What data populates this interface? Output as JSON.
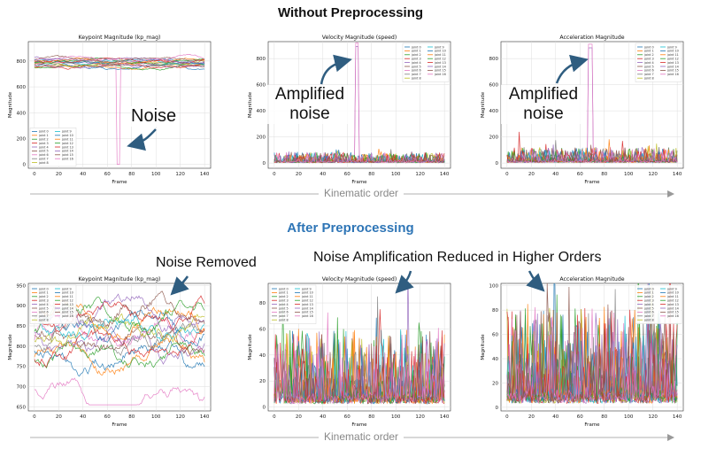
{
  "titles": {
    "without": "Without Preprocessing",
    "after": "After Preprocessing"
  },
  "annotations": {
    "noise": "Noise",
    "amplified_1": "Amplified",
    "noise_2": "noise",
    "amplified_2": "Amplified",
    "noise_3": "noise",
    "noise_removed": "Noise Removed",
    "noise_reduced": "Noise Amplification Reduced in Higher Orders"
  },
  "kinematic_order": "Kinematic order",
  "chart_data": [
    {
      "id": "raw_kp",
      "type": "line",
      "title": "Keypoint Magnitude (kp_mag)",
      "xlabel": "Frame",
      "ylabel": "Magnitude",
      "xlim": [
        -5,
        145
      ],
      "ylim": [
        -30,
        950
      ],
      "xticks": [
        0,
        20,
        40,
        60,
        80,
        100,
        120,
        140
      ],
      "yticks": [
        0,
        200,
        400,
        600,
        800
      ],
      "grid": true,
      "legend_position": "lower-left",
      "legend_cols": 2,
      "legend": [
        "joint 0",
        "joint 1",
        "joint 2",
        "joint 3",
        "joint 4",
        "joint 5",
        "joint 6",
        "joint 7",
        "joint 8",
        "joint 9",
        "joint 10",
        "joint 11",
        "joint 12",
        "joint 13",
        "joint 14",
        "joint 15",
        "joint 16"
      ],
      "gen": {
        "kind": "level",
        "base": 780,
        "spread": 55,
        "amp": 28,
        "minv": 650,
        "maxv": 920,
        "spike": {
          "x": [
            68,
            70
          ],
          "v": 0
        }
      }
    },
    {
      "id": "raw_speed",
      "type": "line",
      "title": "Velocity Magnitude (speed)",
      "xlabel": "Frame",
      "ylabel": "Magnitude",
      "xlim": [
        -5,
        145
      ],
      "ylim": [
        -40,
        930
      ],
      "xticks": [
        0,
        20,
        40,
        60,
        80,
        100,
        120,
        140
      ],
      "yticks": [
        0,
        200,
        400,
        600,
        800
      ],
      "grid": true,
      "legend_position": "upper-right",
      "legend_cols": 2,
      "legend": [
        "joint 0",
        "joint 1",
        "joint 2",
        "joint 3",
        "joint 4",
        "joint 5",
        "joint 6",
        "joint 7",
        "joint 8",
        "joint 9",
        "joint 10",
        "joint 11",
        "joint 12",
        "joint 13",
        "joint 14",
        "joint 15",
        "joint 16"
      ],
      "gen": {
        "kind": "spiky",
        "base": 8,
        "amp": 30,
        "peak": 90,
        "spike": {
          "x": [
            67,
            69
          ],
          "v": 920
        }
      }
    },
    {
      "id": "raw_acc",
      "type": "line",
      "title": "Acceleration Magnitude",
      "xlabel": "Frame",
      "ylabel": "Magnitude",
      "xlim": [
        -5,
        145
      ],
      "ylim": [
        -40,
        930
      ],
      "xticks": [
        0,
        20,
        40,
        60,
        80,
        100,
        120,
        140
      ],
      "yticks": [
        0,
        200,
        400,
        600,
        800
      ],
      "grid": true,
      "legend_position": "upper-right",
      "legend_cols": 2,
      "legend": [
        "joint 0",
        "joint 1",
        "joint 2",
        "joint 3",
        "joint 4",
        "joint 5",
        "joint 6",
        "joint 7",
        "joint 8",
        "joint 9",
        "joint 10",
        "joint 11",
        "joint 12",
        "joint 13",
        "joint 14",
        "joint 15",
        "joint 16"
      ],
      "gen": {
        "kind": "spiky",
        "base": 10,
        "amp": 45,
        "peak": 140,
        "spike": {
          "x": [
            67,
            70
          ],
          "v": 910
        }
      }
    },
    {
      "id": "pre_kp",
      "type": "line",
      "title": "Keypoint Magnitude (kp_mag)",
      "xlabel": "Frame",
      "ylabel": "Magnitude",
      "xlim": [
        -5,
        145
      ],
      "ylim": [
        640,
        955
      ],
      "xticks": [
        0,
        20,
        40,
        60,
        80,
        100,
        120,
        140
      ],
      "yticks": [
        650,
        700,
        750,
        800,
        850,
        900,
        950
      ],
      "grid": true,
      "legend_position": "upper-left",
      "legend_cols": 2,
      "legend": [
        "joint 0",
        "joint 1",
        "joint 2",
        "joint 3",
        "joint 4",
        "joint 5",
        "joint 6",
        "joint 7",
        "joint 8",
        "joint 9",
        "joint 10",
        "joint 11",
        "joint 12",
        "joint 13",
        "joint 14",
        "joint 15",
        "joint 16"
      ],
      "gen": {
        "kind": "level",
        "base": 790,
        "spread": 110,
        "amp": 55,
        "minv": 655,
        "maxv": 940,
        "spike": null
      }
    },
    {
      "id": "pre_speed",
      "type": "line",
      "title": "Velocity Magnitude (speed)",
      "xlabel": "Frame",
      "ylabel": "Magnitude",
      "xlim": [
        -5,
        145
      ],
      "ylim": [
        -3,
        95
      ],
      "xticks": [
        0,
        20,
        40,
        60,
        80,
        100,
        120,
        140
      ],
      "yticks": [
        0,
        20,
        40,
        60,
        80
      ],
      "grid": true,
      "legend_position": "upper-left",
      "legend_cols": 2,
      "legend": [
        "joint 0",
        "joint 1",
        "joint 2",
        "joint 3",
        "joint 4",
        "joint 5",
        "joint 6",
        "joint 7",
        "joint 8",
        "joint 9",
        "joint 10",
        "joint 11",
        "joint 12",
        "joint 13",
        "joint 14",
        "joint 15",
        "joint 16"
      ],
      "gen": {
        "kind": "spiky",
        "base": 6,
        "amp": 22,
        "peak": 88,
        "spike": null
      }
    },
    {
      "id": "pre_acc",
      "type": "line",
      "title": "Acceleration Magnitude",
      "xlabel": "Frame",
      "ylabel": "Magnitude",
      "xlim": [
        -5,
        145
      ],
      "ylim": [
        -3,
        102
      ],
      "xticks": [
        0,
        20,
        40,
        60,
        80,
        100,
        120,
        140
      ],
      "yticks": [
        0,
        20,
        40,
        60,
        80,
        100
      ],
      "grid": true,
      "legend_position": "upper-right",
      "legend_cols": 2,
      "legend": [
        "joint 0",
        "joint 1",
        "joint 2",
        "joint 3",
        "joint 4",
        "joint 5",
        "joint 6",
        "joint 7",
        "joint 8",
        "joint 9",
        "joint 10",
        "joint 11",
        "joint 12",
        "joint 13",
        "joint 14",
        "joint 15",
        "joint 16"
      ],
      "gen": {
        "kind": "spiky",
        "base": 8,
        "amp": 30,
        "peak": 95,
        "spike": null
      }
    }
  ],
  "colors": [
    "#1f77b4",
    "#ff7f0e",
    "#2ca02c",
    "#d62728",
    "#9467bd",
    "#8c564b",
    "#e377c2",
    "#7f7f7f",
    "#bcbd22",
    "#17becf",
    "#1f77b4",
    "#ff7f0e",
    "#2ca02c",
    "#d62728",
    "#9467bd",
    "#8c564b",
    "#e377c2"
  ]
}
